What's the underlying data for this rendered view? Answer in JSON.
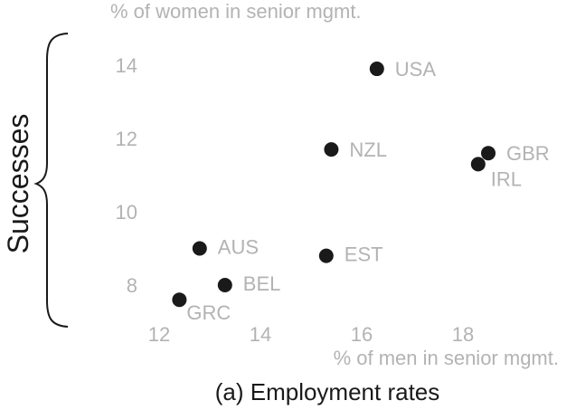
{
  "chart_data": {
    "type": "scatter",
    "xlabel": "% of men in senior mgmt.",
    "ylabel": "% of women in senior mgmt.",
    "xlim": [
      11.5,
      19.5
    ],
    "ylim": [
      7,
      15
    ],
    "xticks": [
      12,
      14,
      16,
      18
    ],
    "yticks": [
      8,
      10,
      12,
      14
    ],
    "grid": false,
    "point_color": "#1a1a1a",
    "label_color": "#b3b3b3",
    "points": [
      {
        "label": "USA",
        "x": 16.3,
        "y": 13.9
      },
      {
        "label": "NZL",
        "x": 15.4,
        "y": 11.7
      },
      {
        "label": "GBR",
        "x": 18.5,
        "y": 11.6
      },
      {
        "label": "IRL",
        "x": 18.3,
        "y": 11.3
      },
      {
        "label": "AUS",
        "x": 12.8,
        "y": 9.0
      },
      {
        "label": "EST",
        "x": 15.3,
        "y": 8.8
      },
      {
        "label": "BEL",
        "x": 13.3,
        "y": 8.0
      },
      {
        "label": "GRC",
        "x": 12.4,
        "y": 7.6
      }
    ],
    "group_label": "Successes",
    "caption": "(a) Employment rates"
  }
}
